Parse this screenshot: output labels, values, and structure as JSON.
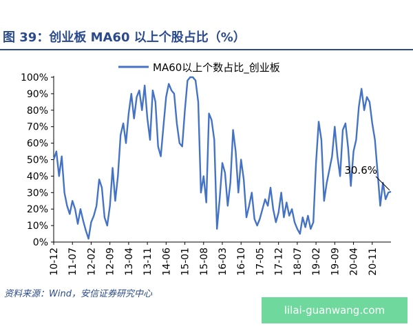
{
  "figure": {
    "title": "图 39：创业板 MA60 以上个股占比（%）",
    "source": "资料来源：Wind，安信证券研究中心",
    "watermark": "lilai-guanwang.com"
  },
  "chart_data": {
    "type": "line",
    "title": "",
    "xlabel": "",
    "ylabel": "",
    "ylim": [
      0,
      100
    ],
    "y_ticks": [
      "0%",
      "10%",
      "20%",
      "30%",
      "40%",
      "50%",
      "60%",
      "70%",
      "80%",
      "90%",
      "100%"
    ],
    "x_ticks": [
      "10-12",
      "11-07",
      "12-02",
      "12-09",
      "13-04",
      "13-11",
      "14-06",
      "15-01",
      "15-08",
      "16-03",
      "16-10",
      "17-05",
      "17-12",
      "18-07",
      "19-02",
      "19-09",
      "20-04",
      "20-11"
    ],
    "x_range": [
      "2010-12",
      "2021-06"
    ],
    "grid": false,
    "legend_position": "top",
    "annotations": [
      {
        "text": "30.6%",
        "x": "2021-06",
        "y": 30.6
      }
    ],
    "series": [
      {
        "name": "MA60以上个数占比_创业板",
        "color": "#4472c4",
        "points": [
          [
            "2010-12",
            50
          ],
          [
            "2011-01",
            55
          ],
          [
            "2011-02",
            40
          ],
          [
            "2011-03",
            52
          ],
          [
            "2011-04",
            30
          ],
          [
            "2011-05",
            22
          ],
          [
            "2011-06",
            17
          ],
          [
            "2011-07",
            25
          ],
          [
            "2011-08",
            20
          ],
          [
            "2011-09",
            11
          ],
          [
            "2011-10",
            20
          ],
          [
            "2011-11",
            13
          ],
          [
            "2011-12",
            7
          ],
          [
            "2012-01",
            2
          ],
          [
            "2012-02",
            12
          ],
          [
            "2012-03",
            16
          ],
          [
            "2012-04",
            22
          ],
          [
            "2012-05",
            38
          ],
          [
            "2012-06",
            33
          ],
          [
            "2012-07",
            15
          ],
          [
            "2012-08",
            10
          ],
          [
            "2012-09",
            22
          ],
          [
            "2012-10",
            45
          ],
          [
            "2012-11",
            25
          ],
          [
            "2012-12",
            40
          ],
          [
            "2013-01",
            65
          ],
          [
            "2013-02",
            72
          ],
          [
            "2013-03",
            60
          ],
          [
            "2013-04",
            78
          ],
          [
            "2013-05",
            90
          ],
          [
            "2013-06",
            75
          ],
          [
            "2013-07",
            88
          ],
          [
            "2013-08",
            92
          ],
          [
            "2013-09",
            80
          ],
          [
            "2013-10",
            95
          ],
          [
            "2013-11",
            75
          ],
          [
            "2013-12",
            62
          ],
          [
            "2014-01",
            92
          ],
          [
            "2014-02",
            85
          ],
          [
            "2014-03",
            58
          ],
          [
            "2014-04",
            52
          ],
          [
            "2014-05",
            70
          ],
          [
            "2014-06",
            88
          ],
          [
            "2014-07",
            96
          ],
          [
            "2014-08",
            92
          ],
          [
            "2014-09",
            90
          ],
          [
            "2014-10",
            72
          ],
          [
            "2014-11",
            60
          ],
          [
            "2014-12",
            58
          ],
          [
            "2015-01",
            80
          ],
          [
            "2015-02",
            98
          ],
          [
            "2015-03",
            100
          ],
          [
            "2015-04",
            100
          ],
          [
            "2015-05",
            98
          ],
          [
            "2015-06",
            85
          ],
          [
            "2015-07",
            30
          ],
          [
            "2015-08",
            40
          ],
          [
            "2015-09",
            24
          ],
          [
            "2015-10",
            78
          ],
          [
            "2015-11",
            74
          ],
          [
            "2015-12",
            62
          ],
          [
            "2016-01",
            8
          ],
          [
            "2016-02",
            26
          ],
          [
            "2016-03",
            48
          ],
          [
            "2016-04",
            42
          ],
          [
            "2016-05",
            22
          ],
          [
            "2016-06",
            36
          ],
          [
            "2016-07",
            68
          ],
          [
            "2016-08",
            55
          ],
          [
            "2016-09",
            30
          ],
          [
            "2016-10",
            50
          ],
          [
            "2016-11",
            38
          ],
          [
            "2016-12",
            15
          ],
          [
            "2017-01",
            22
          ],
          [
            "2017-02",
            30
          ],
          [
            "2017-03",
            14
          ],
          [
            "2017-04",
            10
          ],
          [
            "2017-05",
            14
          ],
          [
            "2017-06",
            20
          ],
          [
            "2017-07",
            26
          ],
          [
            "2017-08",
            22
          ],
          [
            "2017-09",
            33
          ],
          [
            "2017-10",
            20
          ],
          [
            "2017-11",
            12
          ],
          [
            "2017-12",
            18
          ],
          [
            "2018-01",
            30
          ],
          [
            "2018-02",
            15
          ],
          [
            "2018-03",
            24
          ],
          [
            "2018-04",
            16
          ],
          [
            "2018-05",
            20
          ],
          [
            "2018-06",
            12
          ],
          [
            "2018-07",
            8
          ],
          [
            "2018-08",
            5
          ],
          [
            "2018-09",
            15
          ],
          [
            "2018-10",
            9
          ],
          [
            "2018-11",
            16
          ],
          [
            "2018-12",
            8
          ],
          [
            "2019-01",
            12
          ],
          [
            "2019-02",
            48
          ],
          [
            "2019-03",
            73
          ],
          [
            "2019-04",
            62
          ],
          [
            "2019-05",
            25
          ],
          [
            "2019-06",
            36
          ],
          [
            "2019-07",
            44
          ],
          [
            "2019-08",
            52
          ],
          [
            "2019-09",
            70
          ],
          [
            "2019-10",
            52
          ],
          [
            "2019-11",
            40
          ],
          [
            "2019-12",
            68
          ],
          [
            "2020-01",
            72
          ],
          [
            "2020-02",
            57
          ],
          [
            "2020-03",
            34
          ],
          [
            "2020-04",
            55
          ],
          [
            "2020-05",
            62
          ],
          [
            "2020-06",
            82
          ],
          [
            "2020-07",
            93
          ],
          [
            "2020-08",
            80
          ],
          [
            "2020-09",
            88
          ],
          [
            "2020-10",
            85
          ],
          [
            "2020-11",
            72
          ],
          [
            "2020-12",
            62
          ],
          [
            "2021-01",
            42
          ],
          [
            "2021-02",
            22
          ],
          [
            "2021-03",
            36
          ],
          [
            "2021-04",
            26
          ],
          [
            "2021-05",
            30
          ],
          [
            "2021-06",
            30.6
          ]
        ]
      }
    ]
  }
}
